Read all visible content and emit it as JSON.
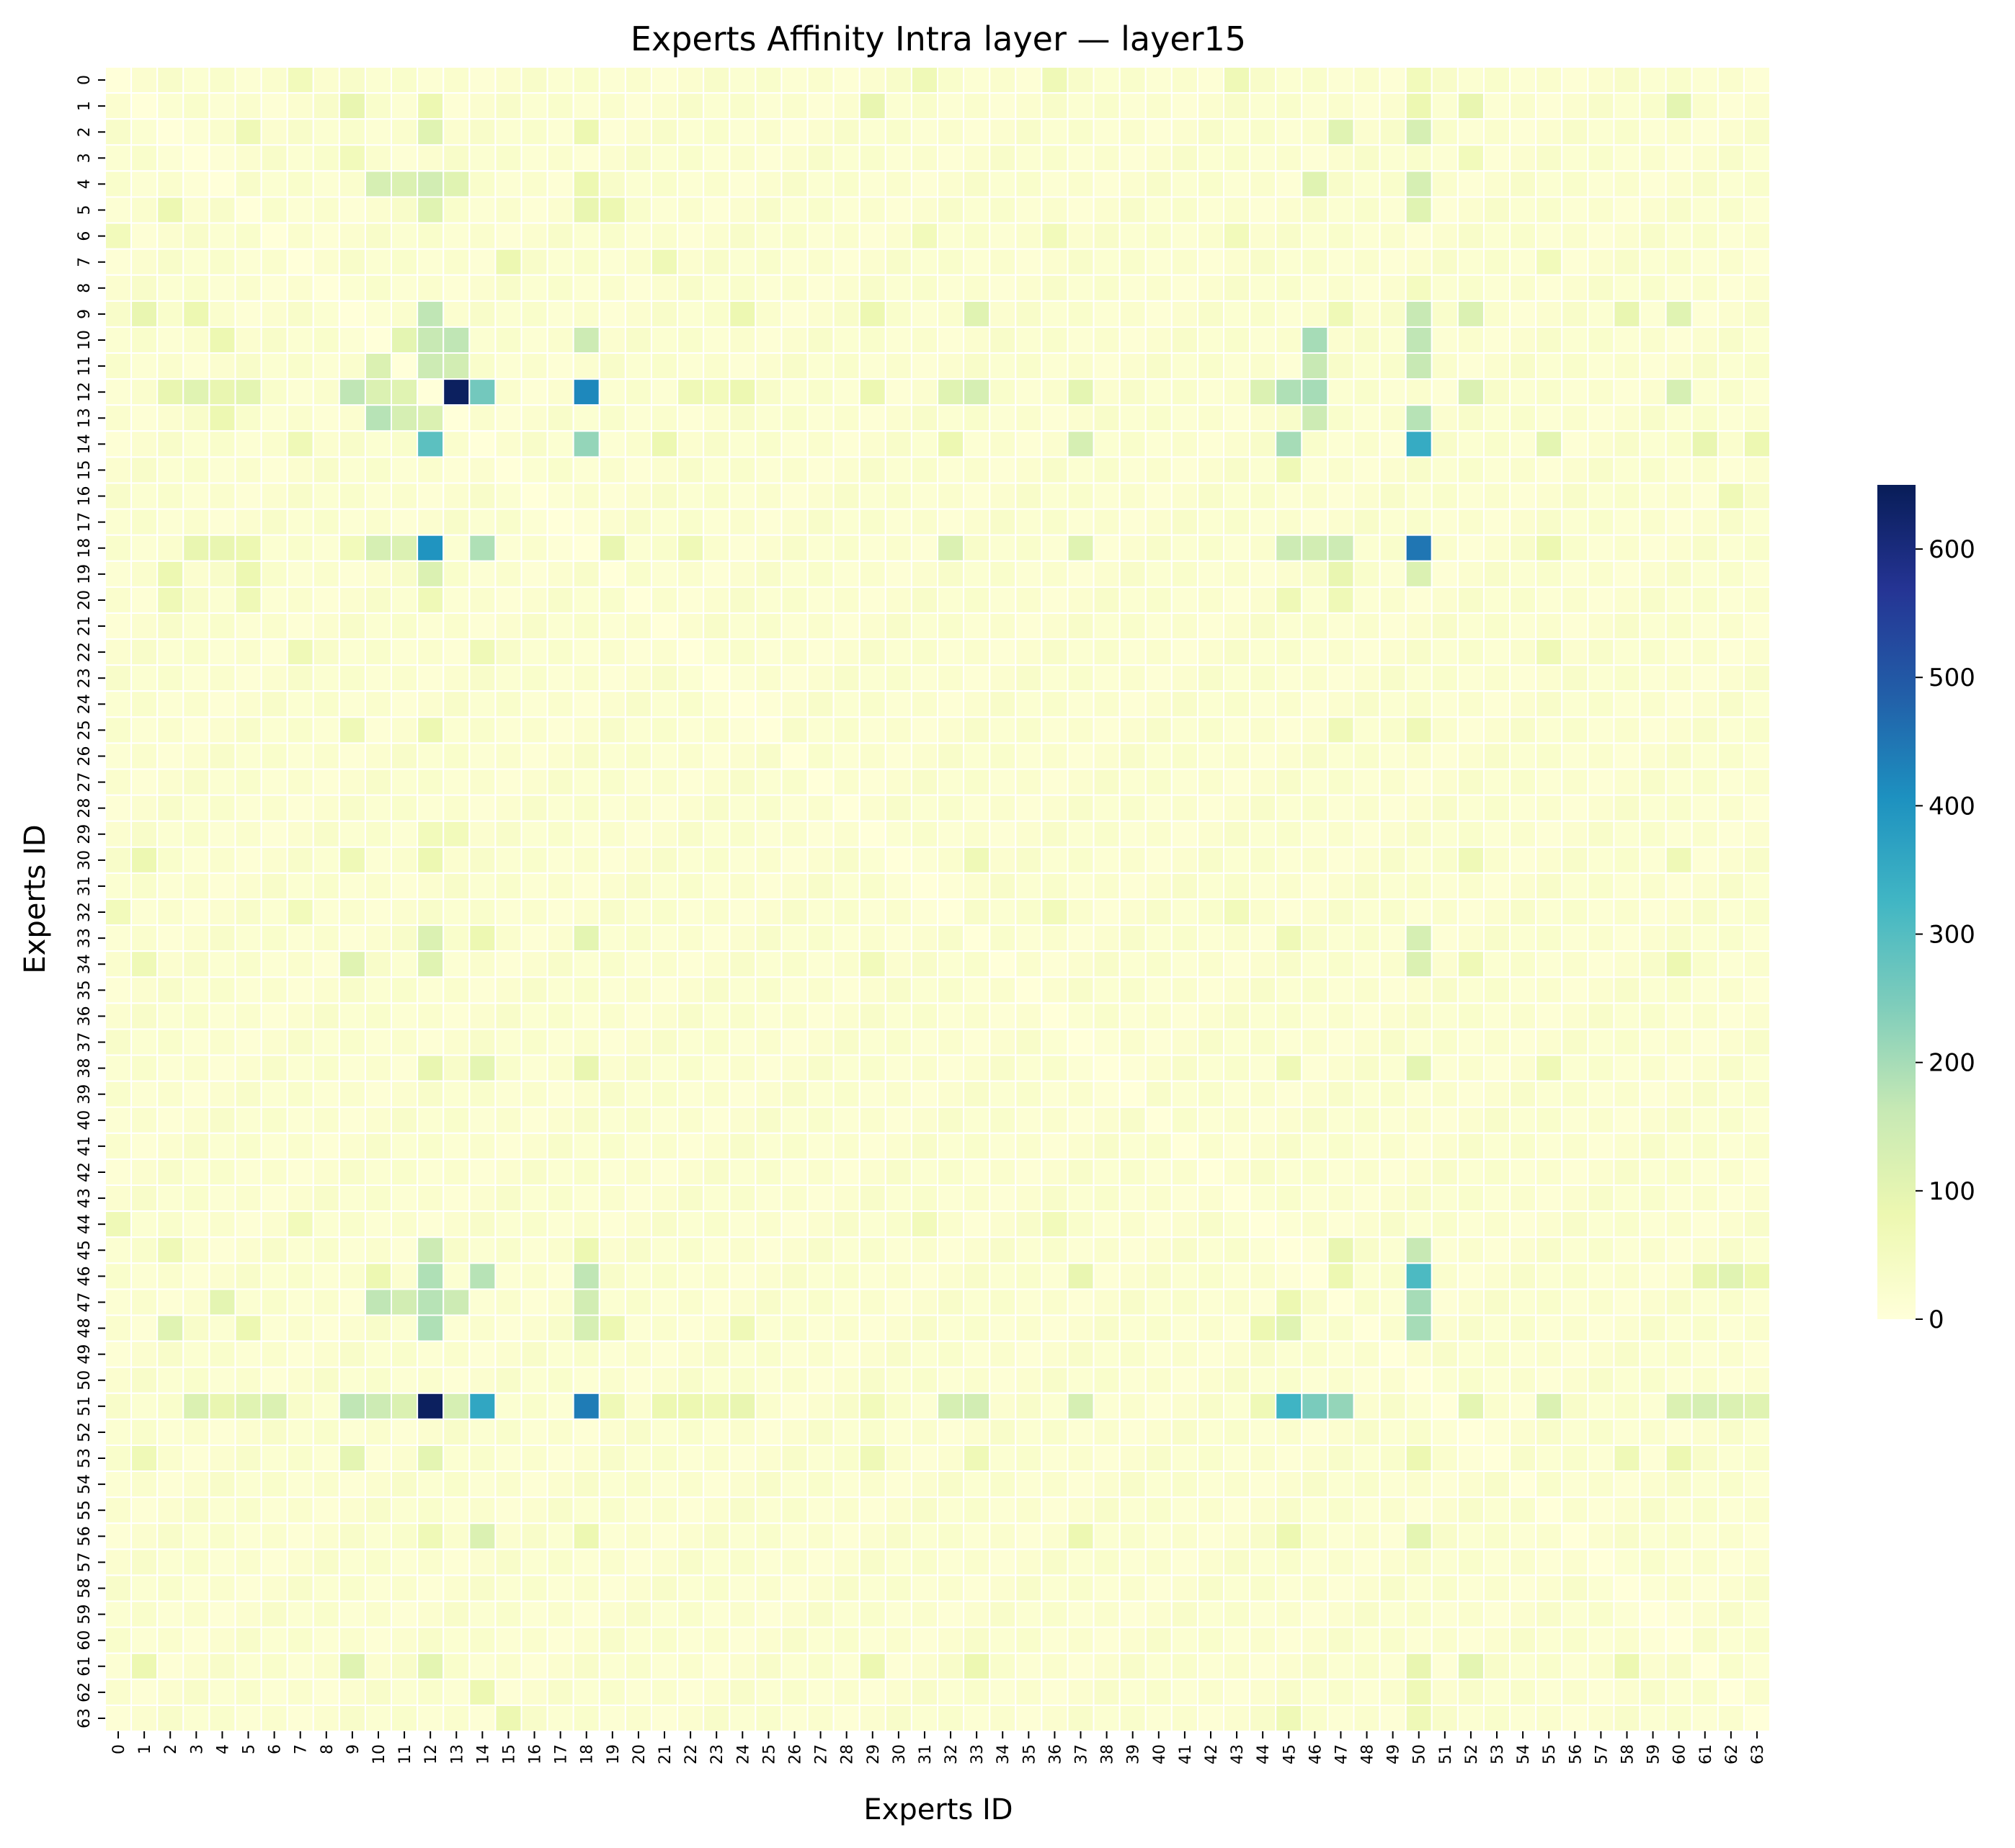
{
  "chart_data": {
    "type": "heatmap",
    "title": "Experts Affinity Intra layer — layer15",
    "xlabel": "Experts ID",
    "ylabel": "Experts ID",
    "n_experts": 64,
    "x_tick_labels": [
      "0",
      "1",
      "2",
      "3",
      "4",
      "5",
      "6",
      "7",
      "8",
      "9",
      "10",
      "11",
      "12",
      "13",
      "14",
      "15",
      "16",
      "17",
      "18",
      "19",
      "20",
      "21",
      "22",
      "23",
      "24",
      "25",
      "26",
      "27",
      "28",
      "29",
      "30",
      "31",
      "32",
      "33",
      "34",
      "35",
      "36",
      "37",
      "38",
      "39",
      "40",
      "41",
      "42",
      "43",
      "44",
      "45",
      "46",
      "47",
      "48",
      "49",
      "50",
      "51",
      "52",
      "53",
      "54",
      "55",
      "56",
      "57",
      "58",
      "59",
      "60",
      "61",
      "62",
      "63"
    ],
    "y_tick_labels": [
      "0",
      "1",
      "2",
      "3",
      "4",
      "5",
      "6",
      "7",
      "8",
      "9",
      "10",
      "11",
      "12",
      "13",
      "14",
      "15",
      "16",
      "17",
      "18",
      "19",
      "20",
      "21",
      "22",
      "23",
      "24",
      "25",
      "26",
      "27",
      "28",
      "29",
      "30",
      "31",
      "32",
      "33",
      "34",
      "35",
      "36",
      "37",
      "38",
      "39",
      "40",
      "41",
      "42",
      "43",
      "44",
      "45",
      "46",
      "47",
      "48",
      "49",
      "50",
      "51",
      "52",
      "53",
      "54",
      "55",
      "56",
      "57",
      "58",
      "59",
      "60",
      "61",
      "62",
      "63"
    ],
    "colorbar": {
      "min": 0,
      "max": 650,
      "ticks": [
        0,
        100,
        200,
        300,
        400,
        500,
        600
      ],
      "colormap": "YlGnBu"
    },
    "background_value": 8,
    "cells": [
      [
        12,
        13,
        640
      ],
      [
        12,
        18,
        420
      ],
      [
        12,
        45,
        190
      ],
      [
        12,
        46,
        200
      ],
      [
        12,
        14,
        260
      ],
      [
        12,
        9,
        170
      ],
      [
        12,
        10,
        120
      ],
      [
        12,
        11,
        110
      ],
      [
        12,
        32,
        110
      ],
      [
        12,
        33,
        130
      ],
      [
        12,
        44,
        120
      ],
      [
        12,
        52,
        120
      ],
      [
        12,
        60,
        130
      ],
      [
        12,
        29,
        80
      ],
      [
        12,
        37,
        100
      ],
      [
        12,
        3,
        110
      ],
      [
        12,
        5,
        100
      ],
      [
        12,
        4,
        90
      ],
      [
        12,
        2,
        90
      ],
      [
        12,
        24,
        80
      ],
      [
        12,
        22,
        70
      ],
      [
        12,
        23,
        60
      ],
      [
        18,
        12,
        400
      ],
      [
        18,
        50,
        450
      ],
      [
        18,
        14,
        190
      ],
      [
        18,
        10,
        130
      ],
      [
        18,
        11,
        120
      ],
      [
        18,
        19,
        90
      ],
      [
        18,
        45,
        150
      ],
      [
        18,
        46,
        140
      ],
      [
        18,
        47,
        150
      ],
      [
        18,
        32,
        120
      ],
      [
        18,
        37,
        110
      ],
      [
        18,
        4,
        90
      ],
      [
        18,
        5,
        80
      ],
      [
        18,
        3,
        90
      ],
      [
        18,
        55,
        80
      ],
      [
        18,
        9,
        60
      ],
      [
        18,
        22,
        70
      ],
      [
        51,
        12,
        640
      ],
      [
        51,
        14,
        360
      ],
      [
        51,
        18,
        440
      ],
      [
        51,
        45,
        330
      ],
      [
        51,
        46,
        250
      ],
      [
        51,
        47,
        220
      ],
      [
        51,
        9,
        170
      ],
      [
        51,
        10,
        150
      ],
      [
        51,
        11,
        120
      ],
      [
        51,
        13,
        130
      ],
      [
        51,
        32,
        130
      ],
      [
        51,
        33,
        140
      ],
      [
        51,
        37,
        130
      ],
      [
        51,
        55,
        120
      ],
      [
        51,
        60,
        120
      ],
      [
        51,
        61,
        130
      ],
      [
        51,
        62,
        120
      ],
      [
        51,
        63,
        110
      ],
      [
        51,
        3,
        120
      ],
      [
        51,
        5,
        110
      ],
      [
        51,
        6,
        120
      ],
      [
        51,
        4,
        90
      ],
      [
        51,
        24,
        90
      ],
      [
        51,
        52,
        100
      ],
      [
        51,
        19,
        70
      ],
      [
        51,
        21,
        80
      ],
      [
        51,
        22,
        80
      ],
      [
        51,
        23,
        70
      ],
      [
        51,
        29,
        60
      ],
      [
        51,
        44,
        70
      ],
      [
        14,
        50,
        350
      ],
      [
        14,
        12,
        290
      ],
      [
        14,
        18,
        220
      ],
      [
        14,
        45,
        200
      ],
      [
        14,
        37,
        130
      ],
      [
        14,
        7,
        70
      ],
      [
        14,
        21,
        80
      ],
      [
        14,
        32,
        80
      ],
      [
        14,
        55,
        100
      ],
      [
        14,
        61,
        90
      ],
      [
        14,
        63,
        80
      ],
      [
        46,
        50,
        310
      ],
      [
        46,
        12,
        190
      ],
      [
        46,
        14,
        180
      ],
      [
        46,
        18,
        170
      ],
      [
        46,
        10,
        80
      ],
      [
        46,
        37,
        90
      ],
      [
        46,
        61,
        90
      ],
      [
        46,
        62,
        110
      ],
      [
        46,
        63,
        80
      ],
      [
        46,
        47,
        80
      ],
      [
        47,
        10,
        170
      ],
      [
        47,
        11,
        140
      ],
      [
        47,
        12,
        180
      ],
      [
        47,
        13,
        150
      ],
      [
        47,
        18,
        140
      ],
      [
        47,
        50,
        200
      ],
      [
        47,
        4,
        100
      ],
      [
        47,
        45,
        80
      ],
      [
        48,
        12,
        190
      ],
      [
        48,
        18,
        130
      ],
      [
        48,
        50,
        200
      ],
      [
        48,
        2,
        110
      ],
      [
        48,
        5,
        80
      ],
      [
        48,
        19,
        80
      ],
      [
        48,
        24,
        70
      ],
      [
        48,
        44,
        80
      ],
      [
        48,
        45,
        110
      ],
      [
        45,
        12,
        150
      ],
      [
        45,
        50,
        160
      ],
      [
        45,
        2,
        70
      ],
      [
        45,
        18,
        80
      ],
      [
        45,
        47,
        90
      ],
      [
        9,
        12,
        170
      ],
      [
        9,
        50,
        160
      ],
      [
        9,
        1,
        90
      ],
      [
        9,
        3,
        80
      ],
      [
        9,
        24,
        80
      ],
      [
        9,
        29,
        80
      ],
      [
        9,
        33,
        110
      ],
      [
        9,
        52,
        120
      ],
      [
        9,
        58,
        90
      ],
      [
        9,
        60,
        110
      ],
      [
        9,
        47,
        70
      ],
      [
        10,
        12,
        160
      ],
      [
        10,
        13,
        170
      ],
      [
        10,
        18,
        150
      ],
      [
        10,
        46,
        200
      ],
      [
        10,
        50,
        170
      ],
      [
        10,
        4,
        80
      ],
      [
        10,
        11,
        100
      ],
      [
        11,
        12,
        150
      ],
      [
        11,
        13,
        140
      ],
      [
        11,
        46,
        160
      ],
      [
        11,
        50,
        160
      ],
      [
        11,
        10,
        120
      ],
      [
        13,
        12,
        120
      ],
      [
        13,
        10,
        180
      ],
      [
        13,
        11,
        130
      ],
      [
        13,
        46,
        150
      ],
      [
        13,
        50,
        180
      ],
      [
        13,
        4,
        80
      ],
      [
        19,
        12,
        120
      ],
      [
        19,
        50,
        120
      ],
      [
        19,
        2,
        80
      ],
      [
        19,
        5,
        80
      ],
      [
        19,
        47,
        90
      ],
      [
        4,
        10,
        130
      ],
      [
        4,
        11,
        120
      ],
      [
        4,
        12,
        140
      ],
      [
        4,
        13,
        110
      ],
      [
        4,
        50,
        130
      ],
      [
        4,
        46,
        110
      ],
      [
        4,
        18,
        80
      ],
      [
        5,
        12,
        110
      ],
      [
        5,
        18,
        90
      ],
      [
        5,
        50,
        110
      ],
      [
        5,
        2,
        80
      ],
      [
        5,
        19,
        80
      ],
      [
        2,
        12,
        110
      ],
      [
        2,
        50,
        130
      ],
      [
        2,
        47,
        110
      ],
      [
        2,
        5,
        70
      ],
      [
        2,
        18,
        80
      ],
      [
        1,
        9,
        90
      ],
      [
        1,
        12,
        80
      ],
      [
        1,
        50,
        80
      ],
      [
        1,
        29,
        90
      ],
      [
        1,
        52,
        90
      ],
      [
        1,
        60,
        100
      ],
      [
        0,
        7,
        60
      ],
      [
        0,
        31,
        70
      ],
      [
        0,
        36,
        70
      ],
      [
        0,
        43,
        70
      ],
      [
        0,
        50,
        60
      ],
      [
        6,
        0,
        60
      ],
      [
        6,
        31,
        60
      ],
      [
        6,
        36,
        60
      ],
      [
        6,
        43,
        60
      ],
      [
        7,
        15,
        80
      ],
      [
        7,
        21,
        70
      ],
      [
        7,
        55,
        60
      ],
      [
        33,
        12,
        120
      ],
      [
        33,
        18,
        100
      ],
      [
        33,
        50,
        130
      ],
      [
        33,
        14,
        80
      ],
      [
        33,
        45,
        70
      ],
      [
        34,
        9,
        110
      ],
      [
        34,
        12,
        110
      ],
      [
        34,
        50,
        120
      ],
      [
        34,
        1,
        70
      ],
      [
        34,
        29,
        60
      ],
      [
        34,
        52,
        70
      ],
      [
        34,
        60,
        80
      ],
      [
        30,
        1,
        80
      ],
      [
        30,
        12,
        80
      ],
      [
        30,
        9,
        70
      ],
      [
        30,
        33,
        70
      ],
      [
        30,
        52,
        70
      ],
      [
        30,
        60,
        70
      ],
      [
        32,
        0,
        60
      ],
      [
        32,
        7,
        60
      ],
      [
        32,
        36,
        60
      ],
      [
        32,
        43,
        60
      ],
      [
        38,
        12,
        90
      ],
      [
        38,
        14,
        100
      ],
      [
        38,
        18,
        90
      ],
      [
        38,
        50,
        100
      ],
      [
        38,
        45,
        70
      ],
      [
        38,
        55,
        70
      ],
      [
        44,
        0,
        70
      ],
      [
        44,
        7,
        60
      ],
      [
        44,
        31,
        60
      ],
      [
        44,
        36,
        60
      ],
      [
        53,
        9,
        100
      ],
      [
        53,
        12,
        100
      ],
      [
        53,
        50,
        80
      ],
      [
        53,
        1,
        70
      ],
      [
        53,
        29,
        70
      ],
      [
        53,
        33,
        70
      ],
      [
        53,
        58,
        70
      ],
      [
        53,
        60,
        80
      ],
      [
        56,
        12,
        70
      ],
      [
        56,
        14,
        120
      ],
      [
        56,
        18,
        80
      ],
      [
        56,
        50,
        100
      ],
      [
        56,
        37,
        80
      ],
      [
        56,
        45,
        80
      ],
      [
        61,
        1,
        80
      ],
      [
        61,
        9,
        110
      ],
      [
        61,
        12,
        100
      ],
      [
        61,
        50,
        90
      ],
      [
        61,
        29,
        80
      ],
      [
        61,
        33,
        80
      ],
      [
        61,
        52,
        100
      ],
      [
        61,
        58,
        80
      ],
      [
        63,
        15,
        80
      ],
      [
        63,
        45,
        70
      ],
      [
        63,
        50,
        70
      ],
      [
        62,
        14,
        80
      ],
      [
        62,
        50,
        70
      ],
      [
        20,
        2,
        70
      ],
      [
        20,
        5,
        70
      ],
      [
        20,
        12,
        70
      ],
      [
        20,
        45,
        70
      ],
      [
        20,
        47,
        70
      ],
      [
        22,
        7,
        70
      ],
      [
        22,
        14,
        70
      ],
      [
        22,
        55,
        70
      ],
      [
        25,
        9,
        70
      ],
      [
        25,
        12,
        80
      ],
      [
        25,
        47,
        70
      ],
      [
        25,
        50,
        70
      ],
      [
        16,
        62,
        70
      ],
      [
        29,
        12,
        60
      ],
      [
        29,
        13,
        60
      ],
      [
        15,
        45,
        70
      ],
      [
        3,
        9,
        60
      ],
      [
        3,
        52,
        60
      ],
      [
        8,
        50,
        50
      ]
    ]
  }
}
